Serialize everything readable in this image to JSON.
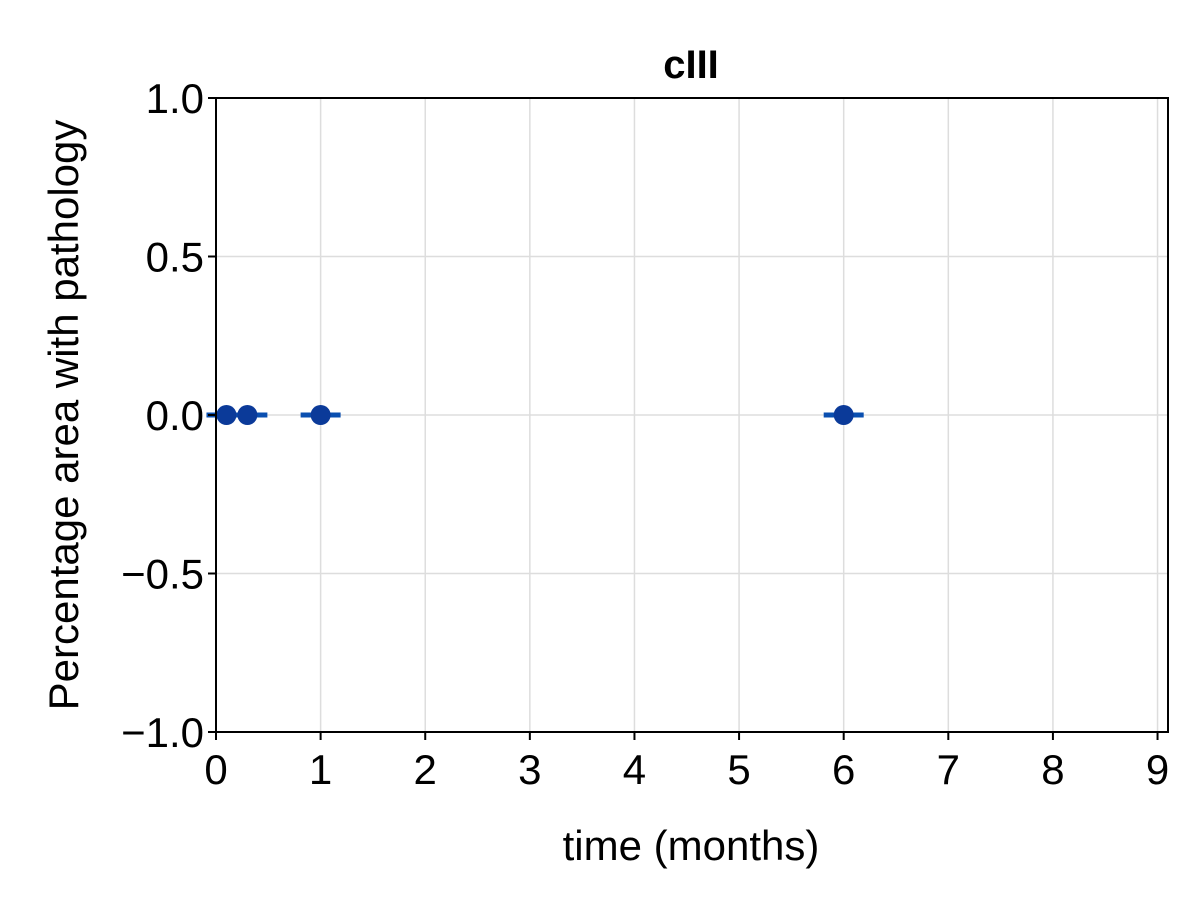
{
  "chart_data": {
    "type": "scatter",
    "title": "cIII",
    "xlabel": "time (months)",
    "ylabel": "Percentage area with pathology",
    "xlim": [
      0,
      9.1
    ],
    "ylim": [
      -1.0,
      1.0
    ],
    "x_ticks": [
      0,
      1,
      2,
      3,
      4,
      5,
      6,
      7,
      8,
      9
    ],
    "x_tick_labels": [
      "0",
      "1",
      "2",
      "3",
      "4",
      "5",
      "6",
      "7",
      "8",
      "9"
    ],
    "y_ticks": [
      -1.0,
      -0.5,
      0.0,
      0.5,
      1.0
    ],
    "y_tick_labels": [
      "−1.0",
      "−0.5",
      "0.0",
      "0.5",
      "1.0"
    ],
    "grid": true,
    "series": [
      {
        "x": [
          0.1,
          0.3,
          1,
          6
        ],
        "y": [
          0,
          0,
          0,
          0
        ],
        "error_low": [
          0,
          0,
          0,
          0
        ],
        "error_high": [
          0,
          0,
          0,
          0
        ],
        "color": "#0b3a99",
        "errorbar_color": "#0a4fb0"
      }
    ]
  }
}
